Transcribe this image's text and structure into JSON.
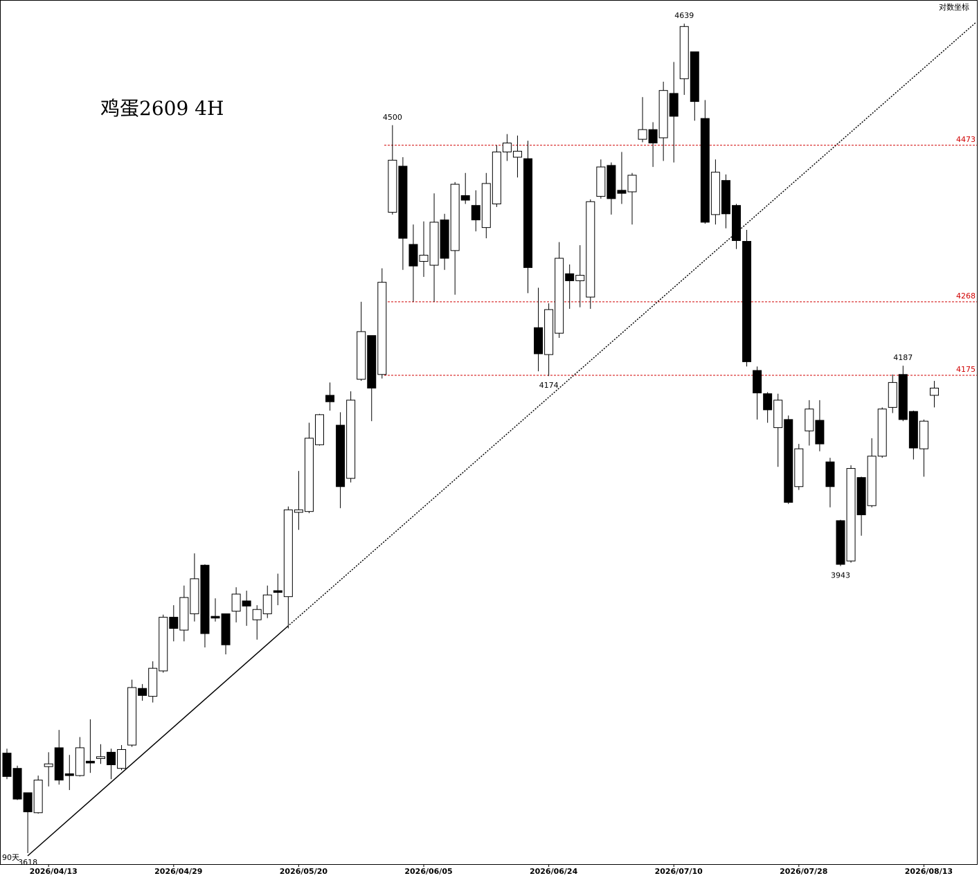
{
  "chart_data": {
    "type": "candlestick",
    "title": "鸡蛋2609 4H",
    "scale_label": "对数坐标",
    "bar_count_label": "90天",
    "log_scale": true,
    "ylim": [
      3606,
      4672
    ],
    "up_color": "#ffffff",
    "down_color": "#000000",
    "line_color": "#000000",
    "hline_color": "#d00000",
    "hlines": [
      4473,
      4268,
      4175
    ],
    "extreme_labels": [
      4500,
      4174,
      4639,
      4187,
      3943,
      3618
    ],
    "categories": [
      null,
      null,
      null,
      null,
      "2026/04/13",
      null,
      null,
      null,
      null,
      null,
      null,
      null,
      null,
      null,
      null,
      null,
      "2026/04/29",
      null,
      null,
      null,
      null,
      null,
      null,
      null,
      null,
      null,
      null,
      null,
      "2026/05/20",
      null,
      null,
      null,
      null,
      null,
      null,
      null,
      null,
      null,
      null,
      null,
      "2026/06/05",
      null,
      null,
      null,
      null,
      null,
      null,
      null,
      null,
      null,
      null,
      null,
      "2026/06/24",
      null,
      null,
      null,
      null,
      null,
      null,
      null,
      null,
      null,
      null,
      null,
      "2026/07/10",
      null,
      null,
      null,
      null,
      null,
      null,
      null,
      null,
      null,
      null,
      null,
      "2026/07/28",
      null,
      null,
      null,
      null,
      null,
      null,
      null,
      null,
      null,
      null,
      null,
      "2026/08/13",
      null
    ],
    "open": [
      3728,
      3711,
      3684,
      3662,
      3713,
      3734,
      3705,
      3703,
      3719,
      3722,
      3729,
      3711,
      3737,
      3801,
      3792,
      3821,
      3883,
      3868,
      3887,
      3944,
      3884,
      3887,
      3890,
      3902,
      3880,
      3887,
      3914,
      3907,
      4007,
      4008,
      4089,
      4150,
      4113,
      4048,
      4170,
      4225,
      4176,
      4384,
      4445,
      4342,
      4320,
      4315,
      4374,
      4334,
      4406,
      4393,
      4364,
      4395,
      4464,
      4457,
      4455,
      4235,
      4201,
      4228,
      4304,
      4295,
      4274,
      4405,
      4446,
      4413,
      4411,
      4481,
      4494,
      4483,
      4543,
      4563,
      4600,
      4509,
      4381,
      4426,
      4393,
      4346,
      4181,
      4152,
      4110,
      4120,
      4038,
      4106,
      4119,
      4068,
      3997,
      3949,
      4049,
      4015,
      4075,
      4135,
      4176,
      4130,
      4084,
      4150
    ],
    "high": [
      3733,
      3714,
      3684,
      3703,
      3729,
      3754,
      3726,
      3746,
      3766,
      3738,
      3733,
      3737,
      3811,
      3806,
      3832,
      3886,
      3897,
      3920,
      3958,
      3945,
      3905,
      3887,
      3918,
      3914,
      3897,
      3920,
      3934,
      4014,
      4057,
      4116,
      4127,
      4166,
      4129,
      4155,
      4268,
      4225,
      4311,
      4500,
      4457,
      4368,
      4372,
      4409,
      4382,
      4424,
      4436,
      4413,
      4436,
      4473,
      4488,
      4486,
      4479,
      4286,
      4266,
      4345,
      4316,
      4341,
      4401,
      4454,
      4450,
      4464,
      4436,
      4538,
      4504,
      4559,
      4586,
      4639,
      4600,
      4534,
      4454,
      4434,
      4395,
      4361,
      4186,
      4154,
      4152,
      4125,
      4090,
      4144,
      4144,
      4073,
      3998,
      4064,
      4050,
      4097,
      4135,
      4176,
      4187,
      4131,
      4120,
      4168
    ],
    "low": [
      3699,
      3676,
      3618,
      3661,
      3691,
      3693,
      3687,
      3702,
      3706,
      3716,
      3699,
      3709,
      3735,
      3787,
      3785,
      3819,
      3855,
      3855,
      3878,
      3848,
      3878,
      3840,
      3877,
      3873,
      3857,
      3882,
      3897,
      3870,
      3986,
      4006,
      4088,
      4131,
      4012,
      4043,
      4168,
      4118,
      4171,
      4381,
      4309,
      4268,
      4300,
      4268,
      4309,
      4277,
      4395,
      4359,
      4350,
      4391,
      4452,
      4430,
      4279,
      4180,
      4174,
      4222,
      4259,
      4261,
      4259,
      4402,
      4381,
      4395,
      4368,
      4477,
      4444,
      4452,
      4450,
      4541,
      4506,
      4369,
      4368,
      4363,
      4336,
      4186,
      4120,
      4116,
      4062,
      4017,
      4034,
      4088,
      4081,
      4013,
      3943,
      3947,
      3979,
      4013,
      4073,
      4128,
      4118,
      4071,
      4050,
      4135
    ],
    "close": [
      3702,
      3677,
      3663,
      3698,
      3716,
      3698,
      3703,
      3734,
      3717,
      3724,
      3715,
      3732,
      3802,
      3793,
      3824,
      3883,
      3870,
      3906,
      3928,
      3864,
      3882,
      3851,
      3910,
      3896,
      3892,
      3909,
      3912,
      4010,
      4010,
      4097,
      4126,
      4142,
      4038,
      4144,
      4230,
      4159,
      4293,
      4453,
      4350,
      4314,
      4328,
      4371,
      4324,
      4421,
      4400,
      4374,
      4422,
      4464,
      4476,
      4465,
      4312,
      4202,
      4258,
      4324,
      4295,
      4302,
      4398,
      4444,
      4402,
      4409,
      4433,
      4494,
      4476,
      4547,
      4512,
      4635,
      4532,
      4371,
      4437,
      4382,
      4347,
      4192,
      4153,
      4132,
      4144,
      4019,
      4084,
      4133,
      4090,
      4038,
      3945,
      4060,
      4004,
      4075,
      4133,
      4166,
      4120,
      4085,
      4118,
      4159
    ]
  }
}
